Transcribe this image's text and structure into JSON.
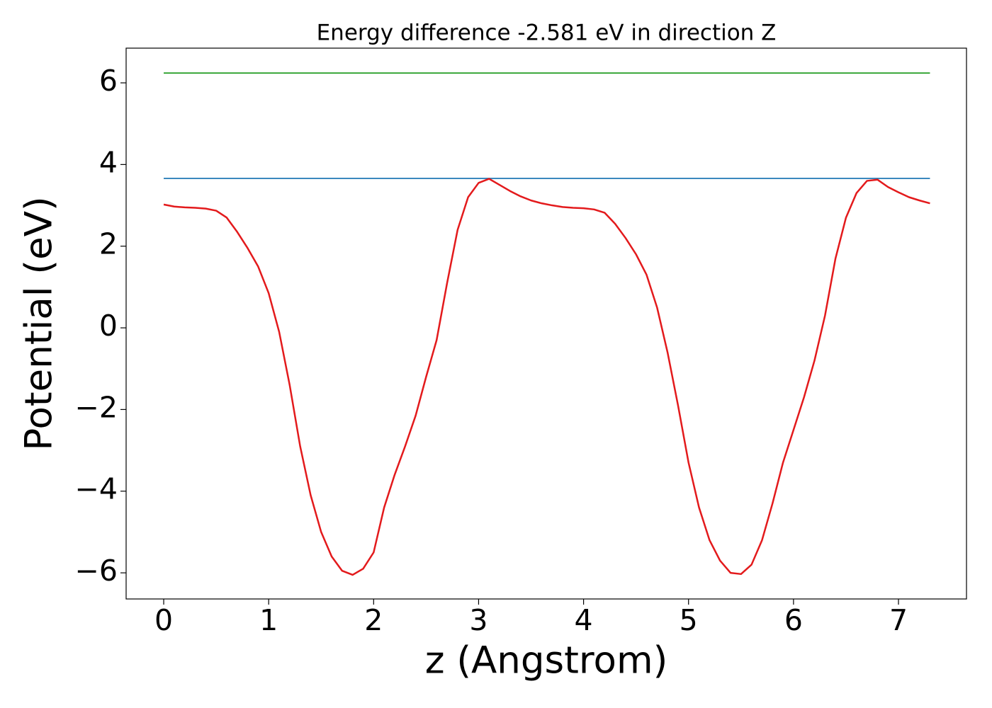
{
  "chart_data": {
    "type": "line",
    "title": "Energy difference -2.581 eV in direction Z",
    "x_label": "z (Angstrom)",
    "y_label": "Potential (eV)",
    "xlim": [
      -0.358,
      7.648
    ],
    "ylim": [
      -6.64,
      6.85
    ],
    "xticks": [
      0,
      1,
      2,
      3,
      4,
      5,
      6,
      7
    ],
    "yticks": [
      {
        "value": -6,
        "label": "−6"
      },
      {
        "value": -4,
        "label": "−4"
      },
      {
        "value": -2,
        "label": "−2"
      },
      0,
      2,
      4,
      6
    ],
    "grid": false,
    "series": [
      {
        "color": "#1f77b4",
        "x": [
          0,
          7.3
        ],
        "values": [
          3.659,
          3.659
        ]
      },
      {
        "color": "#2ca02c",
        "x": [
          0,
          7.3
        ],
        "values": [
          6.24,
          6.24
        ]
      },
      {
        "color": "#e31a1c",
        "x": [
          0,
          0.1,
          0.2,
          0.3,
          0.4,
          0.5,
          0.6,
          0.7,
          0.8,
          0.9,
          1.0,
          1.1,
          1.2,
          1.3,
          1.4,
          1.5,
          1.6,
          1.7,
          1.8,
          1.9,
          2.0,
          2.1,
          2.2,
          2.3,
          2.4,
          2.5,
          2.6,
          2.7,
          2.8,
          2.9,
          3.0,
          3.1,
          3.2,
          3.3,
          3.4,
          3.5,
          3.6,
          3.7,
          3.8,
          3.9,
          4.0,
          4.1,
          4.2,
          4.3,
          4.4,
          4.5,
          4.6,
          4.7,
          4.8,
          4.9,
          5.0,
          5.1,
          5.2,
          5.3,
          5.4,
          5.5,
          5.6,
          5.7,
          5.8,
          5.9,
          6.0,
          6.1,
          6.2,
          6.3,
          6.4,
          6.5,
          6.6,
          6.7,
          6.8,
          6.9,
          7.0,
          7.1,
          7.2,
          7.3
        ],
        "values": [
          3.02,
          2.97,
          2.95,
          2.94,
          2.92,
          2.87,
          2.7,
          2.35,
          1.95,
          1.5,
          0.85,
          -0.1,
          -1.4,
          -2.9,
          -4.1,
          -5.0,
          -5.6,
          -5.95,
          -6.05,
          -5.9,
          -5.5,
          -4.4,
          -3.6,
          -2.9,
          -2.15,
          -1.2,
          -0.3,
          1.1,
          2.4,
          3.2,
          3.55,
          3.65,
          3.5,
          3.35,
          3.22,
          3.12,
          3.05,
          3.0,
          2.96,
          2.94,
          2.93,
          2.9,
          2.82,
          2.55,
          2.2,
          1.8,
          1.3,
          0.5,
          -0.6,
          -1.9,
          -3.3,
          -4.4,
          -5.2,
          -5.7,
          -6.0,
          -6.03,
          -5.8,
          -5.2,
          -4.3,
          -3.3,
          -2.5,
          -1.7,
          -0.8,
          0.3,
          1.7,
          2.7,
          3.3,
          3.6,
          3.63,
          3.45,
          3.32,
          3.2,
          3.12,
          3.05
        ]
      }
    ]
  }
}
